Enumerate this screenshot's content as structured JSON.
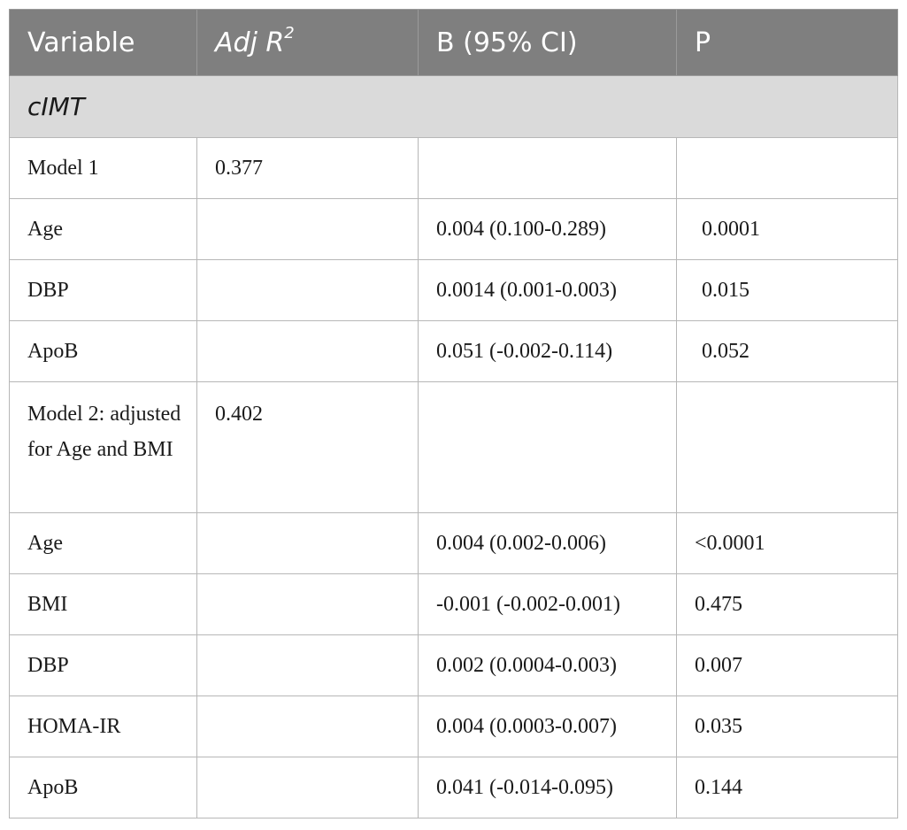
{
  "header": {
    "col1": "Variable",
    "col2_main": "Adj R",
    "col2_sup": "2",
    "col3": "B (95% CI)",
    "col4": "P"
  },
  "section": {
    "label": "cIMT"
  },
  "rows": [
    {
      "variable": "Model 1",
      "adj_r2": "0.377",
      "b_ci": "",
      "p": ""
    },
    {
      "variable": "Age",
      "adj_r2": "",
      "b_ci": "0.004 (0.100-0.289)",
      "p": "0.0001"
    },
    {
      "variable": "DBP",
      "adj_r2": "",
      "b_ci": "0.0014 (0.001-0.003)",
      "p": "0.015"
    },
    {
      "variable": "ApoB",
      "adj_r2": "",
      "b_ci": "0.051 (-0.002-0.114)",
      "p": "0.052"
    },
    {
      "variable": "Model 2: adjusted for Age and BMI",
      "adj_r2": "0.402",
      "b_ci": "",
      "p": ""
    },
    {
      "variable": "Age",
      "adj_r2": "",
      "b_ci": "0.004 (0.002-0.006)",
      "p": "<0.0001"
    },
    {
      "variable": "BMI",
      "adj_r2": "",
      "b_ci": "-0.001 (-0.002-0.001)",
      "p": "0.475"
    },
    {
      "variable": "DBP",
      "adj_r2": "",
      "b_ci": "0.002 (0.0004-0.003)",
      "p": "0.007"
    },
    {
      "variable": "HOMA-IR",
      "adj_r2": "",
      "b_ci": "0.004 (0.0003-0.007)",
      "p": "0.035"
    },
    {
      "variable": "ApoB",
      "adj_r2": "",
      "b_ci": "0.041 (-0.014-0.095)",
      "p": "0.144"
    }
  ]
}
